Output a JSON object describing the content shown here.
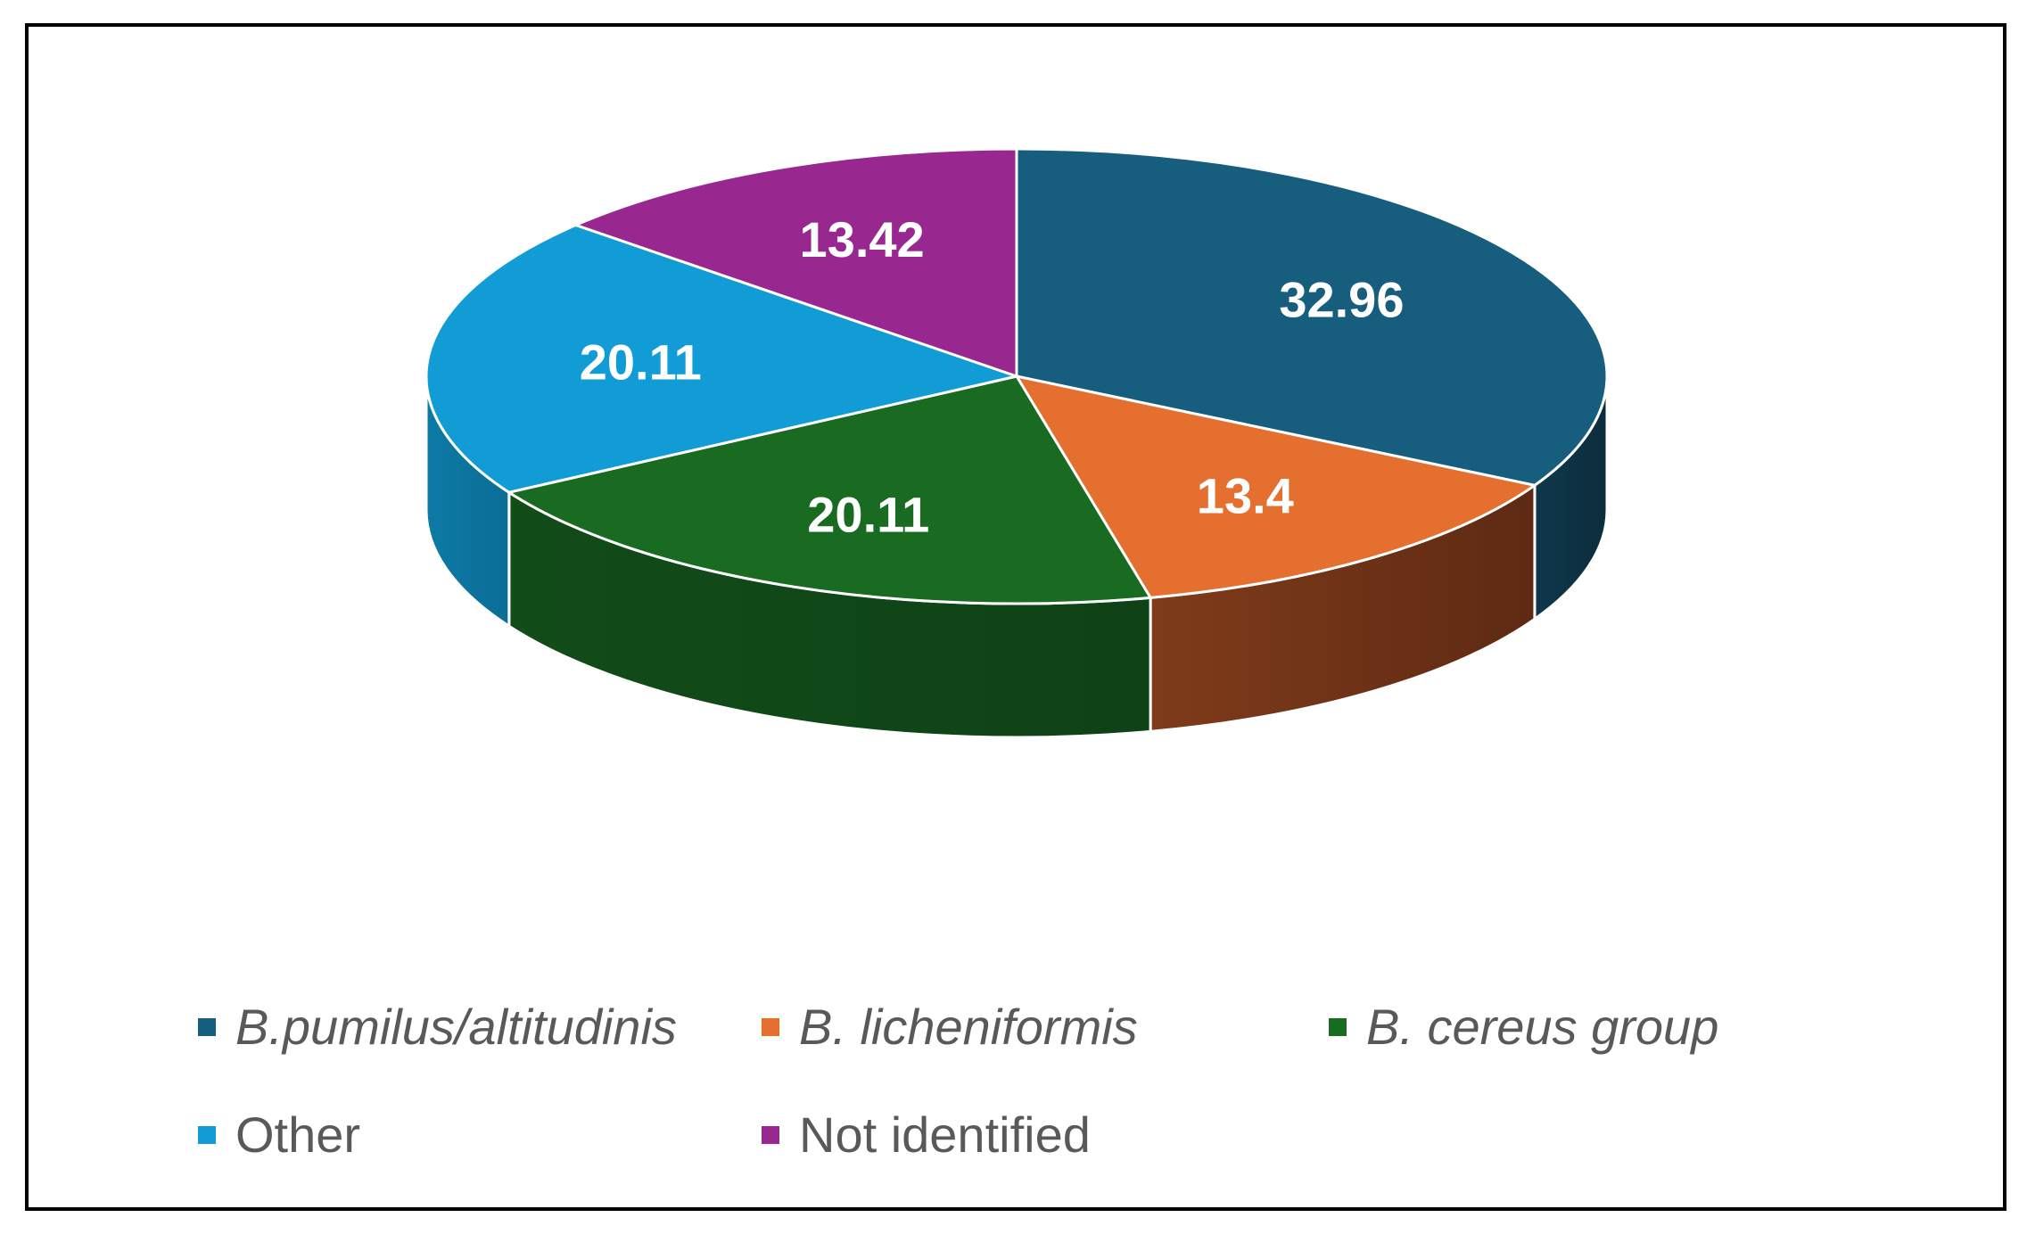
{
  "chart_data": {
    "type": "pie",
    "style": "3d",
    "categories": [
      "B.pumilus/altitudinis",
      "B. licheniformis",
      "B. cereus group",
      "Other",
      "Not identified"
    ],
    "values": [
      32.96,
      13.4,
      20.11,
      20.11,
      13.42
    ],
    "labels": [
      "32.96",
      "13.4",
      "20.11",
      "20.11",
      "13.42"
    ],
    "colors": [
      "#175D7E",
      "#E46F2F",
      "#1A6B22",
      "#129CD5",
      "#98288F"
    ],
    "side_colors": [
      "#0C2C3C",
      "#5E2A13",
      "#0F4216",
      "#0B6E96",
      "#5A1754"
    ],
    "italic": [
      true,
      true,
      true,
      false,
      false
    ],
    "legend_position": "bottom",
    "title": "",
    "xlabel": "",
    "ylabel": ""
  }
}
